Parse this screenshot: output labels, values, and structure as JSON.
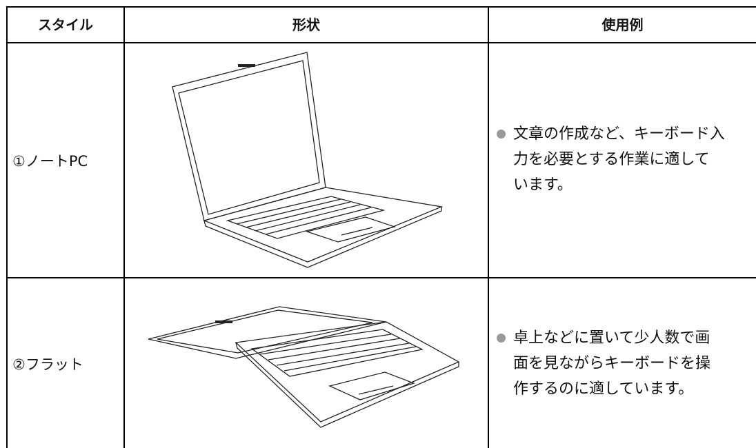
{
  "table": {
    "headers": [
      "スタイル",
      "形状",
      "使用例"
    ],
    "rows": [
      {
        "style": "①ノートPC",
        "description": [
          "文章の作成など、キーボード入",
          "力を必要とする作業に適して",
          "います。"
        ]
      },
      {
        "style": "②フラット",
        "description": [
          "卓上などに置いて少人数で画",
          "面を見ながらキーボードを操",
          "作するのに適しています。"
        ]
      }
    ]
  }
}
